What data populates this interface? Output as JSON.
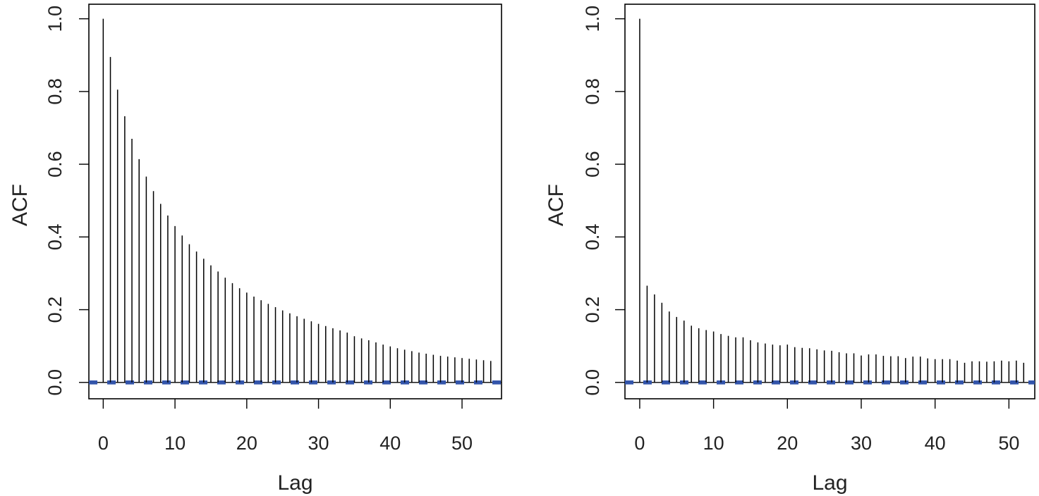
{
  "chart_data": [
    {
      "type": "bar",
      "subtype": "acf-stem",
      "xlabel": "Lag",
      "ylabel": "ACF",
      "xlim": [
        -2,
        55.5
      ],
      "ylim": [
        -0.045,
        1.04
      ],
      "xticks": [
        0,
        10,
        20,
        30,
        40,
        50
      ],
      "yticks": [
        "0.0",
        "0.2",
        "0.4",
        "0.6",
        "0.8",
        "1.0"
      ],
      "lags": [
        0,
        1,
        2,
        3,
        4,
        5,
        6,
        7,
        8,
        9,
        10,
        11,
        12,
        13,
        14,
        15,
        16,
        17,
        18,
        19,
        20,
        21,
        22,
        23,
        24,
        25,
        26,
        27,
        28,
        29,
        30,
        31,
        32,
        33,
        34,
        35,
        36,
        37,
        38,
        39,
        40,
        41,
        42,
        43,
        44,
        45,
        46,
        47,
        48,
        49,
        50,
        51,
        52,
        53,
        54
      ],
      "values": [
        1.0,
        0.895,
        0.805,
        0.732,
        0.67,
        0.614,
        0.566,
        0.526,
        0.491,
        0.459,
        0.43,
        0.404,
        0.38,
        0.36,
        0.34,
        0.322,
        0.305,
        0.288,
        0.273,
        0.259,
        0.247,
        0.236,
        0.226,
        0.216,
        0.207,
        0.198,
        0.19,
        0.182,
        0.175,
        0.168,
        0.161,
        0.155,
        0.149,
        0.143,
        0.137,
        0.127,
        0.121,
        0.116,
        0.11,
        0.104,
        0.099,
        0.094,
        0.09,
        0.086,
        0.082,
        0.079,
        0.076,
        0.073,
        0.071,
        0.069,
        0.067,
        0.065,
        0.063,
        0.061,
        0.059
      ],
      "ci_band": [
        -0.0025,
        0.0025
      ],
      "ci_color": "#3355aa",
      "bar_color": "#000000",
      "grid": false
    },
    {
      "type": "bar",
      "subtype": "acf-stem",
      "xlabel": "Lag",
      "ylabel": "ACF",
      "xlim": [
        -2,
        53.5
      ],
      "ylim": [
        -0.045,
        1.04
      ],
      "xticks": [
        0,
        10,
        20,
        30,
        40,
        50
      ],
      "yticks": [
        "0.0",
        "0.2",
        "0.4",
        "0.6",
        "0.8",
        "1.0"
      ],
      "lags": [
        0,
        1,
        2,
        3,
        4,
        5,
        6,
        7,
        8,
        9,
        10,
        11,
        12,
        13,
        14,
        15,
        16,
        17,
        18,
        19,
        20,
        21,
        22,
        23,
        24,
        25,
        26,
        27,
        28,
        29,
        30,
        31,
        32,
        33,
        34,
        35,
        36,
        37,
        38,
        39,
        40,
        41,
        42,
        43,
        44,
        45,
        46,
        47,
        48,
        49,
        50,
        51,
        52
      ],
      "values": [
        1.0,
        0.266,
        0.242,
        0.219,
        0.195,
        0.18,
        0.17,
        0.156,
        0.149,
        0.144,
        0.14,
        0.133,
        0.128,
        0.124,
        0.124,
        0.116,
        0.11,
        0.107,
        0.104,
        0.102,
        0.104,
        0.097,
        0.095,
        0.094,
        0.091,
        0.088,
        0.087,
        0.083,
        0.08,
        0.08,
        0.074,
        0.077,
        0.077,
        0.073,
        0.072,
        0.072,
        0.067,
        0.071,
        0.071,
        0.066,
        0.064,
        0.064,
        0.064,
        0.06,
        0.054,
        0.058,
        0.058,
        0.057,
        0.058,
        0.06,
        0.058,
        0.06,
        0.054
      ],
      "ci_band": [
        -0.0025,
        0.0025
      ],
      "ci_color": "#3355aa",
      "bar_color": "#000000",
      "grid": false
    }
  ]
}
